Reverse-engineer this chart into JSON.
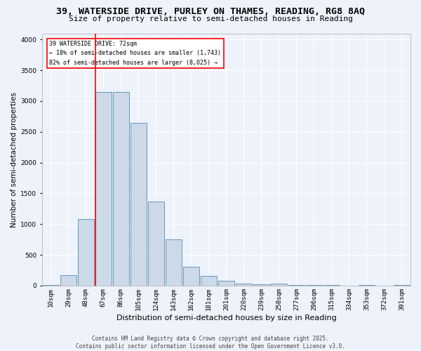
{
  "title": "39, WATERSIDE DRIVE, PURLEY ON THAMES, READING, RG8 8AQ",
  "subtitle": "Size of property relative to semi-detached houses in Reading",
  "xlabel": "Distribution of semi-detached houses by size in Reading",
  "ylabel": "Number of semi-detached properties",
  "categories": [
    "10sqm",
    "29sqm",
    "48sqm",
    "67sqm",
    "86sqm",
    "105sqm",
    "124sqm",
    "143sqm",
    "162sqm",
    "181sqm",
    "201sqm",
    "220sqm",
    "239sqm",
    "258sqm",
    "277sqm",
    "296sqm",
    "315sqm",
    "334sqm",
    "353sqm",
    "372sqm",
    "391sqm"
  ],
  "values": [
    10,
    175,
    1080,
    3150,
    3150,
    2650,
    1370,
    750,
    310,
    155,
    75,
    35,
    20,
    35,
    5,
    5,
    5,
    0,
    5,
    0,
    5
  ],
  "bar_color": "#ccd9e8",
  "bar_edge_color": "#6699bb",
  "red_line_x": 3,
  "annotation_text": "39 WATERSIDE DRIVE: 72sqm\n← 18% of semi-detached houses are smaller (1,743)\n82% of semi-detached houses are larger (8,025) →",
  "ylim": [
    0,
    4100
  ],
  "yticks": [
    0,
    500,
    1000,
    1500,
    2000,
    2500,
    3000,
    3500,
    4000
  ],
  "background_color": "#eef2fb",
  "grid_color": "#ffffff",
  "footer": "Contains HM Land Registry data © Crown copyright and database right 2025.\nContains public sector information licensed under the Open Government Licence v3.0.",
  "title_fontsize": 9.5,
  "subtitle_fontsize": 8,
  "ylabel_fontsize": 7.5,
  "xlabel_fontsize": 8,
  "tick_fontsize": 6.5,
  "annotation_fontsize": 6,
  "footer_fontsize": 5.5
}
